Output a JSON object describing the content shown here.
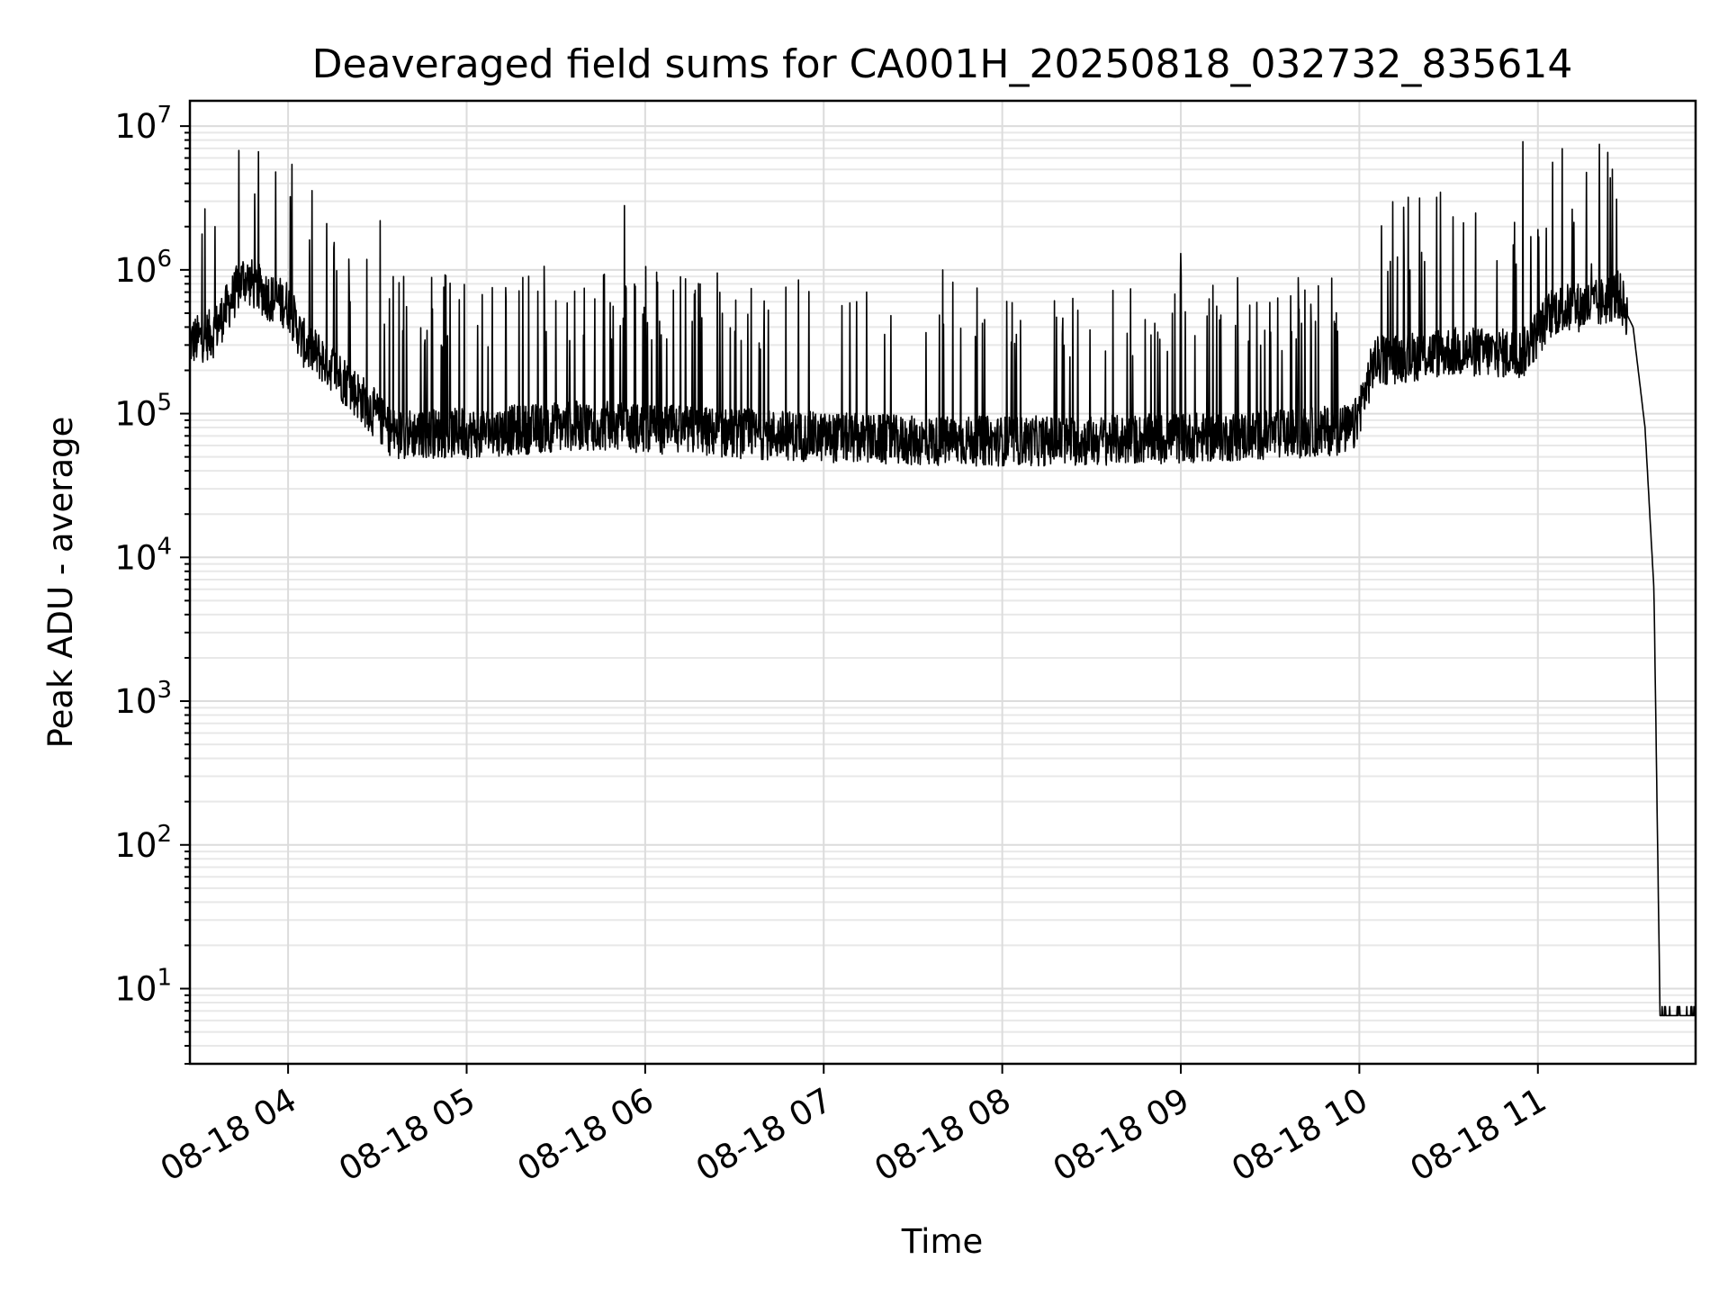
{
  "chart_data": {
    "type": "line",
    "title": "Deaveraged field sums for CA001H_20250818_032732_835614",
    "xlabel": "Time",
    "ylabel": "Peak ADU - average",
    "yscale": "log",
    "ylim": [
      3,
      15000000
    ],
    "xlim": [
      "2025-08-18 03:27",
      "2025-08-18 11:53"
    ],
    "grid": true,
    "x_ticks": [
      {
        "t": "2025-08-18 04:00",
        "label": "08-18 04"
      },
      {
        "t": "2025-08-18 05:00",
        "label": "08-18 05"
      },
      {
        "t": "2025-08-18 06:00",
        "label": "08-18 06"
      },
      {
        "t": "2025-08-18 07:00",
        "label": "08-18 07"
      },
      {
        "t": "2025-08-18 08:00",
        "label": "08-18 08"
      },
      {
        "t": "2025-08-18 09:00",
        "label": "08-18 09"
      },
      {
        "t": "2025-08-18 10:00",
        "label": "08-18 10"
      },
      {
        "t": "2025-08-18 11:00",
        "label": "08-18 11"
      }
    ],
    "y_ticks": [
      {
        "value": 10,
        "base": "10",
        "exp": "1"
      },
      {
        "value": 100,
        "base": "10",
        "exp": "2"
      },
      {
        "value": 1000,
        "base": "10",
        "exp": "3"
      },
      {
        "value": 10000,
        "base": "10",
        "exp": "4"
      },
      {
        "value": 100000,
        "base": "10",
        "exp": "5"
      },
      {
        "value": 1000000,
        "base": "10",
        "exp": "6"
      },
      {
        "value": 10000000,
        "base": "10",
        "exp": "7"
      }
    ],
    "series": [
      {
        "color": "#000000",
        "baseline": [
          [
            "2025-08-18 03:27",
            300000
          ],
          [
            "2025-08-18 03:35",
            350000
          ],
          [
            "2025-08-18 03:45",
            850000
          ],
          [
            "2025-08-18 03:55",
            600000
          ],
          [
            "2025-08-18 04:00",
            550000
          ],
          [
            "2025-08-18 04:05",
            300000
          ],
          [
            "2025-08-18 04:15",
            200000
          ],
          [
            "2025-08-18 04:25",
            120000
          ],
          [
            "2025-08-18 04:35",
            70000
          ],
          [
            "2025-08-18 05:00",
            70000
          ],
          [
            "2025-08-18 05:40",
            80000
          ],
          [
            "2025-08-18 06:30",
            70000
          ],
          [
            "2025-08-18 07:30",
            62000
          ],
          [
            "2025-08-18 08:30",
            62000
          ],
          [
            "2025-08-18 09:30",
            68000
          ],
          [
            "2025-08-18 09:58",
            75000
          ],
          [
            "2025-08-18 10:05",
            220000
          ],
          [
            "2025-08-18 10:30",
            260000
          ],
          [
            "2025-08-18 10:55",
            250000
          ],
          [
            "2025-08-18 11:05",
            500000
          ],
          [
            "2025-08-18 11:20",
            550000
          ],
          [
            "2025-08-18 11:27",
            650000
          ],
          [
            "2025-08-18 11:32",
            400000
          ],
          [
            "2025-08-18 11:36",
            80000
          ],
          [
            "2025-08-18 11:39",
            6000
          ],
          [
            "2025-08-18 11:41",
            8
          ],
          [
            "2025-08-18 11:53",
            7
          ]
        ],
        "spikes": [
          [
            "2025-08-18 04:13",
            2100000
          ],
          [
            "2025-08-18 04:31",
            2200000
          ],
          [
            "2025-08-18 05:53",
            2800000
          ],
          [
            "2025-08-18 07:40",
            1000000
          ],
          [
            "2025-08-18 09:00",
            1300000
          ],
          [
            "2025-08-18 10:17",
            1000000
          ],
          [
            "2025-08-18 10:55",
            7800000
          ],
          [
            "2025-08-18 11:12",
            1600000
          ],
          [
            "2025-08-18 11:18",
            1100000
          ]
        ]
      }
    ]
  }
}
